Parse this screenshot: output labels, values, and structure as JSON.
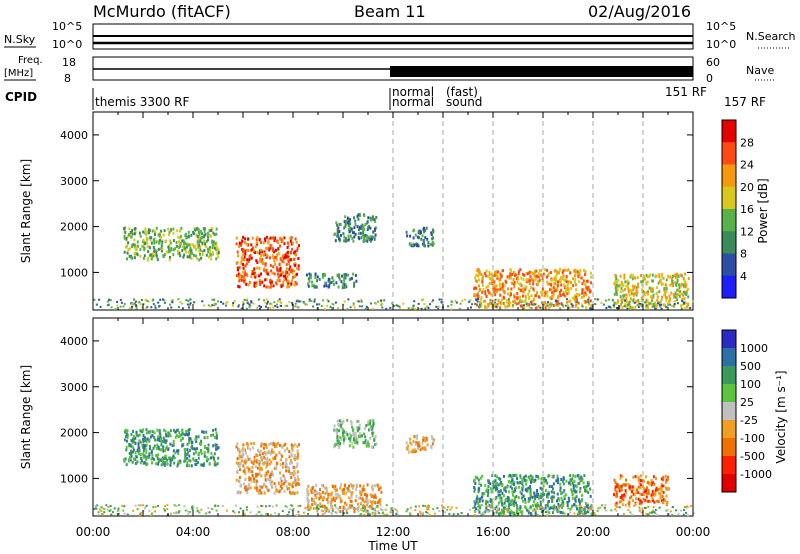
{
  "header": {
    "station": "McMurdo (fitACF)",
    "beam": "Beam 11",
    "date": "02/Aug/2016"
  },
  "strips": {
    "nsky_label": "N.Sky",
    "nsearch_label": "N.Search",
    "noise_top": "10^5",
    "noise_bottom": "10^0",
    "freq_label_top": "Freq.",
    "freq_label_unit": "[MHz]",
    "freq_top": "18",
    "freq_bottom": "8",
    "nave_label": "Nave",
    "nave_top": "60",
    "nave_bottom": "0",
    "cpid_label": "CPID",
    "cpid_segments": [
      "themis 3300 RF",
      "normal",
      "normal",
      "(fast)",
      "sound",
      "151 RF",
      "157 RF"
    ]
  },
  "chart_data": [
    {
      "type": "heatmap",
      "panel": "power",
      "ylabel": "Slant Range [km]",
      "yticks": [
        1000,
        2000,
        3000,
        4000
      ],
      "ylim": [
        180,
        4500
      ],
      "xticks": [
        "00:00",
        "04:00",
        "08:00",
        "12:00",
        "16:00",
        "20:00",
        "00:00"
      ],
      "xlim_hours": [
        0,
        24
      ],
      "colorbar_label": "Power [dB]",
      "colorbar_ticks": [
        "4",
        "8",
        "12",
        "16",
        "20",
        "24",
        "28"
      ],
      "colorbar_colors": [
        "#1d1dff",
        "#2c4fa6",
        "#3a8a5a",
        "#58b24c",
        "#d8c81e",
        "#f59a0c",
        "#ff4a12",
        "#e60000"
      ],
      "echo_regions": [
        {
          "t0": 1.2,
          "t1": 5.0,
          "r0": 1300,
          "r1": 2000,
          "level": 3
        },
        {
          "t0": 5.7,
          "t1": 8.2,
          "r0": 700,
          "r1": 1800,
          "level": 6
        },
        {
          "t0": 8.5,
          "t1": 10.5,
          "r0": 700,
          "r1": 1000,
          "level": 2
        },
        {
          "t0": 9.6,
          "t1": 11.3,
          "r0": 1700,
          "r1": 2300,
          "level": 2
        },
        {
          "t0": 12.5,
          "t1": 13.6,
          "r0": 1600,
          "r1": 2000,
          "level": 2
        },
        {
          "t0": 15.2,
          "t1": 19.9,
          "r0": 250,
          "r1": 1100,
          "level": 5
        },
        {
          "t0": 20.8,
          "t1": 23.8,
          "r0": 250,
          "r1": 1000,
          "level": 4
        }
      ]
    },
    {
      "type": "heatmap",
      "panel": "velocity",
      "xlabel": "Time UT",
      "ylabel": "Slant Range [km]",
      "yticks": [
        1000,
        2000,
        3000,
        4000
      ],
      "ylim": [
        180,
        4500
      ],
      "xticks": [
        "00:00",
        "04:00",
        "08:00",
        "12:00",
        "16:00",
        "20:00",
        "00:00"
      ],
      "xlim_hours": [
        0,
        24
      ],
      "colorbar_label": "Velocity [m s⁻¹]",
      "colorbar_ticks": [
        "1000",
        "500",
        "100",
        "25",
        "-25",
        "-100",
        "-500",
        "-1000"
      ],
      "colorbar_colors": [
        "#2a2ac4",
        "#2e6fa8",
        "#3a9a5a",
        "#5cc43c",
        "#c0c0c0",
        "#f0a020",
        "#f07000",
        "#ff2000",
        "#e00000"
      ],
      "echo_regions": [
        {
          "t0": 1.2,
          "t1": 5.0,
          "r0": 1300,
          "r1": 2100,
          "level": 2
        },
        {
          "t0": 5.7,
          "t1": 8.2,
          "r0": 700,
          "r1": 1800,
          "level": 5
        },
        {
          "t0": 8.5,
          "t1": 11.5,
          "r0": 300,
          "r1": 900,
          "level": 5
        },
        {
          "t0": 9.6,
          "t1": 11.3,
          "r0": 1700,
          "r1": 2300,
          "level": 3
        },
        {
          "t0": 12.5,
          "t1": 13.6,
          "r0": 1600,
          "r1": 2000,
          "level": 5
        },
        {
          "t0": 15.2,
          "t1": 19.9,
          "r0": 250,
          "r1": 1100,
          "level": 2
        },
        {
          "t0": 20.8,
          "t1": 23.0,
          "r0": 450,
          "r1": 1100,
          "level": 6
        }
      ]
    }
  ]
}
